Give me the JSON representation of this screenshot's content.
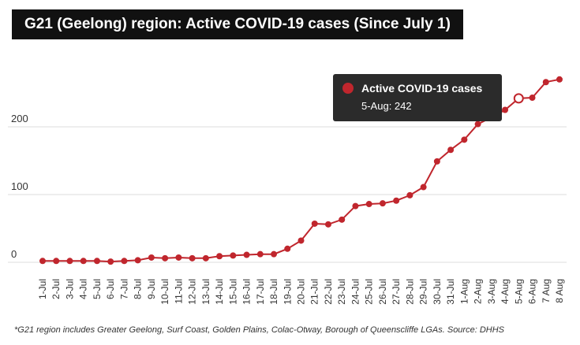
{
  "chart_data": {
    "type": "line",
    "title": "G21 (Geelong) region: Active COVID-19 cases (Since July 1)",
    "categories": [
      "1-Jul",
      "2-Jul",
      "3-Jul",
      "4-Jul",
      "5-Jul",
      "6-Jul",
      "7-Jul",
      "8-Jul",
      "9-Jul",
      "10-Jul",
      "11-Jul",
      "12-Jul",
      "13-Jul",
      "14-Jul",
      "15-Jul",
      "16-Jul",
      "17-Jul",
      "18-Jul",
      "19-Jul",
      "20-Jul",
      "21-Jul",
      "22-Jul",
      "23-Jul",
      "24-Jul",
      "25-Jul",
      "26-Jul",
      "27-Jul",
      "28-Jul",
      "29-Jul",
      "30-Jul",
      "31-Jul",
      "1-Aug",
      "2-Aug",
      "3-Aug",
      "4-Aug",
      "5-Aug",
      "6-Aug",
      "7 Aug",
      "8 Aug"
    ],
    "series": [
      {
        "name": "Active COVID-19 cases",
        "values": [
          2,
          2,
          2,
          2,
          2,
          1,
          2,
          3,
          7,
          6,
          7,
          6,
          6,
          9,
          10,
          11,
          12,
          12,
          20,
          32,
          57,
          56,
          63,
          83,
          86,
          87,
          91,
          99,
          111,
          149,
          166,
          181,
          204,
          214,
          225,
          242,
          243,
          266,
          270
        ]
      }
    ],
    "yticks": [
      0,
      100,
      200
    ],
    "ylim": [
      -10,
      290
    ],
    "grid": true,
    "color": "#c0262d",
    "tooltip": {
      "series_name": "Active COVID-19 cases",
      "text": "5-Aug: 242",
      "index": 35
    }
  },
  "footnote": "*G21 region includes Greater Geelong, Surf Coast, Golden Plains, Colac-Otway, Borough of Queenscliffe LGAs. Source: DHHS"
}
